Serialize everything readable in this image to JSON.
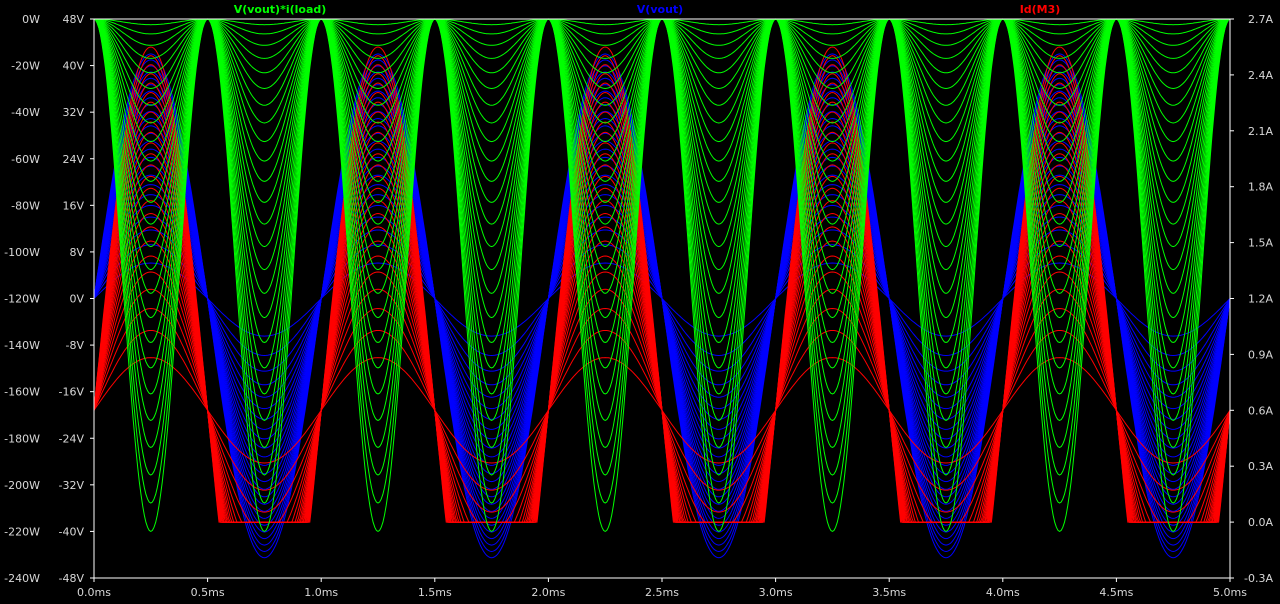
{
  "chart_data": {
    "type": "line",
    "x_ticks": [
      "0.0ms",
      "0.5ms",
      "1.0ms",
      "1.5ms",
      "2.0ms",
      "2.5ms",
      "3.0ms",
      "3.5ms",
      "4.0ms",
      "4.5ms",
      "5.0ms"
    ],
    "xlim": [
      0,
      5
    ],
    "y_axes": [
      {
        "unit": "W",
        "range": [
          -240,
          0
        ],
        "ticks": [
          "0W",
          "-20W",
          "-40W",
          "-60W",
          "-80W",
          "-100W",
          "-120W",
          "-140W",
          "-160W",
          "-180W",
          "-200W",
          "-220W",
          "-240W"
        ]
      },
      {
        "unit": "V",
        "range": [
          -48,
          48
        ],
        "ticks": [
          "48V",
          "40V",
          "32V",
          "24V",
          "16V",
          "8V",
          "0V",
          "-8V",
          "-16V",
          "-24V",
          "-32V",
          "-40V",
          "-48V"
        ]
      },
      {
        "unit": "A",
        "range": [
          -0.3,
          2.7
        ],
        "ticks": [
          "2.7A",
          "2.4A",
          "2.1A",
          "1.8A",
          "1.5A",
          "1.2A",
          "0.9A",
          "0.6A",
          "0.3A",
          "0.0A",
          "-0.3A"
        ]
      }
    ],
    "grid": false,
    "series": [
      {
        "name": "V(vout)*i(load)",
        "color": "#00ff00",
        "axis": "W",
        "period_ms": 0.5,
        "min": -220,
        "max": 0,
        "steps": 25
      },
      {
        "name": "V(vout)",
        "color": "#0000ff",
        "axis": "V",
        "period_ms": 1.0,
        "amplitude": 42,
        "steps": 25
      },
      {
        "name": "Id(M3)",
        "color": "#ff0000",
        "axis": "A",
        "period_ms": 1.0,
        "max": 2.55,
        "min": 0.0,
        "rest": 0.6,
        "steps": 25
      }
    ]
  }
}
